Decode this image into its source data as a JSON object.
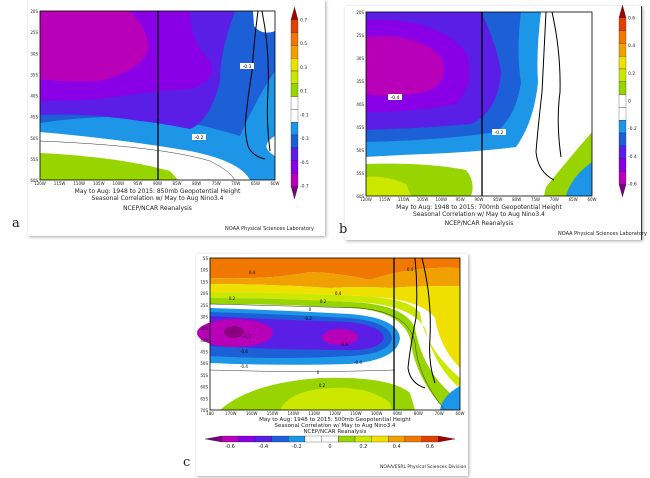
{
  "panels": [
    {
      "letter": "a",
      "caption_line1": "May to Aug: 1948 to 2015: 850mb Geopotential Height",
      "caption_line2": "Seasonal Correlation w/ May to Aug Nino3.4",
      "caption_line3": "NCEP/NCAR Reanalysis",
      "credit": "NOAA Physical Sciences Laboratory",
      "y_ticks": [
        "20S",
        "25S",
        "30S",
        "35S",
        "40S",
        "45S",
        "50S",
        "55S",
        "60S"
      ],
      "x_ticks": [
        "120W",
        "115W",
        "110W",
        "105W",
        "100W",
        "95W",
        "90W",
        "85W",
        "80W",
        "75W",
        "70W",
        "65W",
        "60W"
      ],
      "colorbar_labels": [
        "0.7",
        "0.5",
        "0.3",
        "0.1",
        "-0.1",
        "-0.3",
        "-0.5",
        "-0.7"
      ],
      "contour_labels": [
        "-0.3",
        "-0.2"
      ]
    },
    {
      "letter": "b",
      "caption_line1": "May to Aug: 1948 to 2015: 700mb Geopotential Height",
      "caption_line2": "Seasonal Correlation w/ May to Aug Nino3.4",
      "caption_line3": "NCEP/NCAR Reanalysis",
      "credit": "NOAA Physical Sciences Laboratory",
      "y_ticks": [
        "20S",
        "25S",
        "30S",
        "35S",
        "40S",
        "45S",
        "50S",
        "55S",
        "60S"
      ],
      "x_ticks": [
        "120W",
        "115W",
        "110W",
        "105W",
        "100W",
        "95W",
        "90W",
        "85W",
        "80W",
        "75W",
        "70W",
        "65W",
        "60W"
      ],
      "colorbar_labels": [
        "0.6",
        "0.4",
        "0.2",
        "0",
        "-0.2",
        "-0.4",
        "-0.6"
      ],
      "contour_labels": [
        "-0.4",
        "-0.2"
      ]
    },
    {
      "letter": "c",
      "caption_line1": "May to Aug: 1948 to 2015: 500mb Geopotential Height",
      "caption_line2": "Seasonal Correlation w/ May to Aug Nino3.4",
      "caption_line3": "NCEP/NCAR Reanalysis",
      "credit": "NOAA/ESRL Physical Sciences Division",
      "y_ticks": [
        "5S",
        "10S",
        "15S",
        "20S",
        "25S",
        "30S",
        "35S",
        "40S",
        "45S",
        "50S",
        "55S",
        "60S",
        "65S",
        "70S"
      ],
      "x_ticks": [
        "180",
        "170W",
        "160W",
        "150W",
        "140W",
        "130W",
        "120W",
        "110W",
        "100W",
        "90W",
        "80W",
        "70W",
        "60W"
      ],
      "colorbar_labels": [
        "-0.6",
        "-0.4",
        "-0.2",
        "0",
        "0.2",
        "0.4",
        "0.6"
      ],
      "contour_labels": [
        "0.4",
        "0.4",
        "0.2",
        "0.2",
        "0",
        "-0.2",
        "-0.6",
        "-0.4",
        "-0.6",
        "-0.4",
        "-0.2",
        "0",
        "0.2",
        "0.4"
      ]
    }
  ],
  "colors": {
    "magenta": "#b800b8",
    "purple": "#8a00e6",
    "violet": "#5a1ee6",
    "dark_blue": "#1c5fd6",
    "light_blue": "#1e96e8",
    "lime": "#98d400",
    "yellow_green": "#cce800",
    "yellow": "#f0e000",
    "orange": "#f0a000",
    "dark_orange": "#f07800"
  }
}
